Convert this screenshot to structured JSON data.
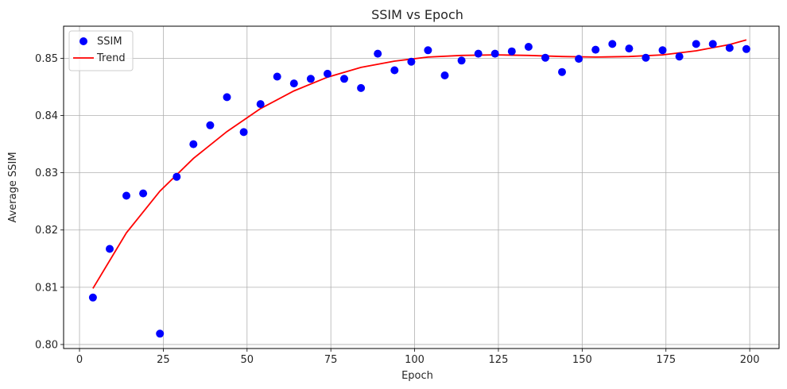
{
  "chart_data": {
    "type": "scatter",
    "title": "SSIM vs Epoch",
    "xlabel": "Epoch",
    "ylabel": "Average SSIM",
    "xlim": [
      -4.75,
      208.75
    ],
    "ylim": [
      0.7993,
      0.8556
    ],
    "xticks": [
      0,
      25,
      50,
      75,
      100,
      125,
      150,
      175,
      200
    ],
    "yticks": [
      0.8,
      0.81,
      0.82,
      0.83,
      0.84,
      0.85
    ],
    "grid": true,
    "legend": {
      "placement": "top-left",
      "entries": [
        "SSIM",
        "Trend"
      ]
    },
    "colors": {
      "points": "#0000ff",
      "trend": "#ff0000",
      "grid": "#b0b0b0"
    },
    "series": [
      {
        "name": "SSIM",
        "kind": "scatter",
        "x": [
          4,
          9,
          14,
          19,
          24,
          29,
          34,
          39,
          44,
          49,
          54,
          59,
          64,
          69,
          74,
          79,
          84,
          89,
          94,
          99,
          104,
          109,
          114,
          119,
          124,
          129,
          134,
          139,
          144,
          149,
          154,
          159,
          164,
          169,
          174,
          179,
          184,
          189,
          194,
          199
        ],
        "y": [
          0.8082,
          0.8167,
          0.826,
          0.8264,
          0.8019,
          0.8293,
          0.835,
          0.8383,
          0.8432,
          0.8371,
          0.842,
          0.8468,
          0.8456,
          0.8464,
          0.8473,
          0.8464,
          0.8448,
          0.8508,
          0.8479,
          0.8494,
          0.8514,
          0.847,
          0.8496,
          0.8508,
          0.8508,
          0.8512,
          0.852,
          0.8501,
          0.8476,
          0.8499,
          0.8515,
          0.8525,
          0.8517,
          0.8501,
          0.8514,
          0.8503,
          0.8525,
          0.8525,
          0.8518,
          0.8516
        ]
      },
      {
        "name": "Trend",
        "kind": "line",
        "x": [
          4,
          14,
          24,
          34,
          44,
          54,
          64,
          74,
          84,
          94,
          104,
          114,
          124,
          134,
          144,
          154,
          164,
          174,
          184,
          194,
          199
        ],
        "y": [
          0.8098,
          0.8195,
          0.8268,
          0.8325,
          0.8372,
          0.8412,
          0.8443,
          0.8467,
          0.8484,
          0.8495,
          0.8502,
          0.8505,
          0.8506,
          0.8505,
          0.8503,
          0.8502,
          0.8503,
          0.8506,
          0.8513,
          0.8524,
          0.8532
        ]
      }
    ]
  }
}
